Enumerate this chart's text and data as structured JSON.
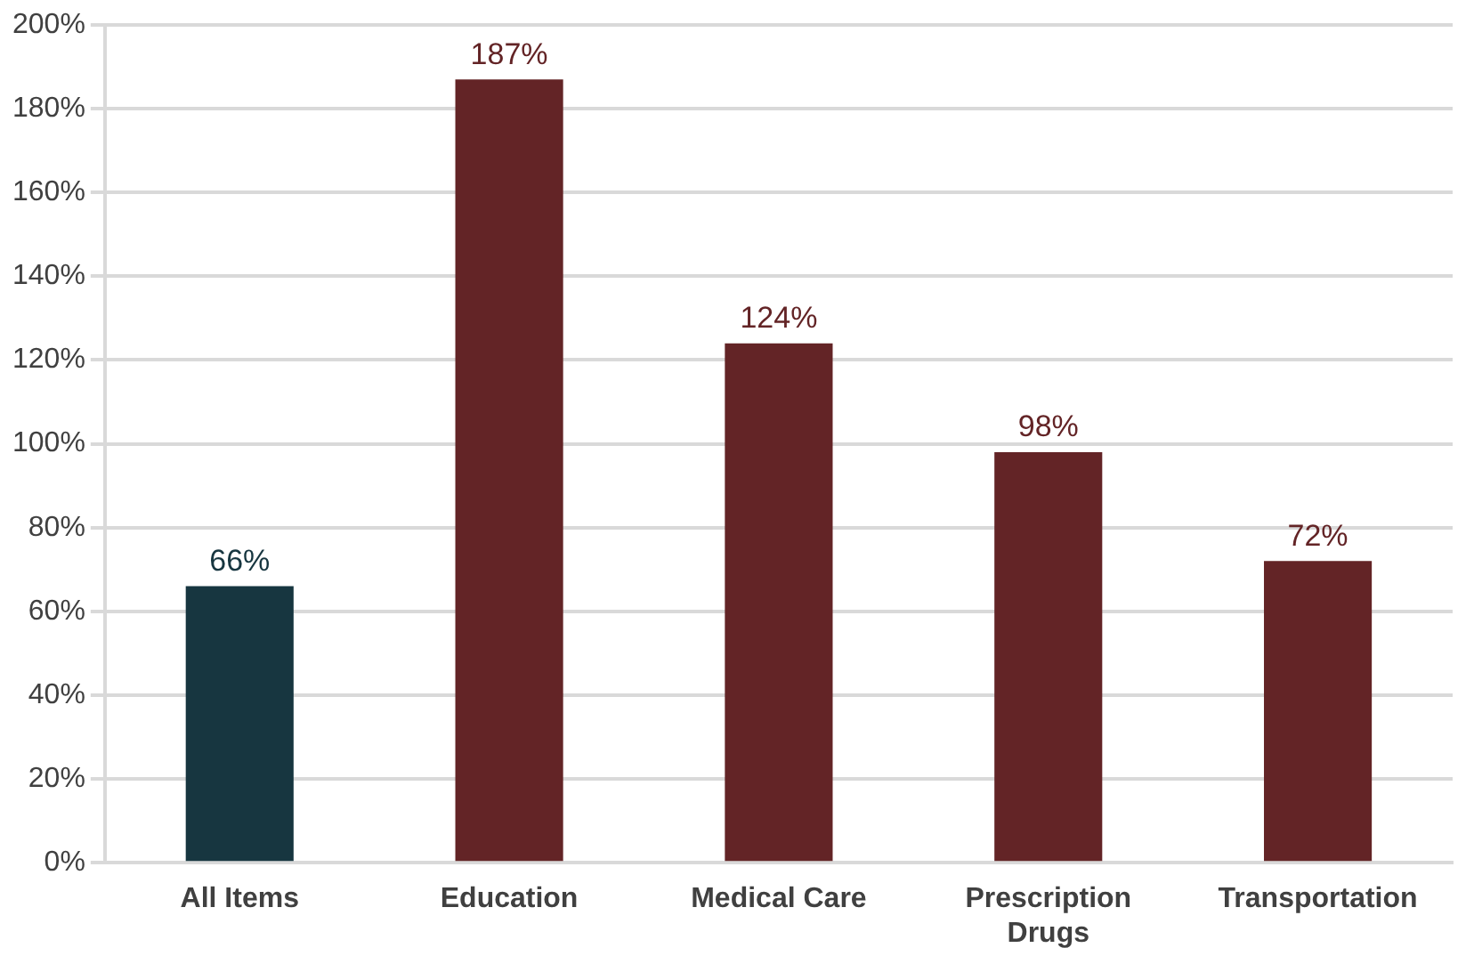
{
  "chart_data": {
    "type": "bar",
    "categories": [
      "All Items",
      "Education",
      "Medical Care",
      "Prescription Drugs",
      "Transportation"
    ],
    "values": [
      66,
      187,
      124,
      98,
      72
    ],
    "colors": [
      "#173640",
      "#632426",
      "#632426",
      "#632426",
      "#632426"
    ],
    "value_labels": [
      "66%",
      "187%",
      "124%",
      "98%",
      "72%"
    ],
    "ylim": [
      0,
      200
    ],
    "yticks": [
      {
        "value": 0,
        "label": "0%"
      },
      {
        "value": 20,
        "label": "20%"
      },
      {
        "value": 40,
        "label": "40%"
      },
      {
        "value": 60,
        "label": "60%"
      },
      {
        "value": 80,
        "label": "80%"
      },
      {
        "value": 100,
        "label": "100%"
      },
      {
        "value": 120,
        "label": "120%"
      },
      {
        "value": 140,
        "label": "140%"
      },
      {
        "value": 160,
        "label": "160%"
      },
      {
        "value": 180,
        "label": "180%"
      },
      {
        "value": 200,
        "label": "200%"
      }
    ],
    "grid": "y",
    "legend": false
  }
}
